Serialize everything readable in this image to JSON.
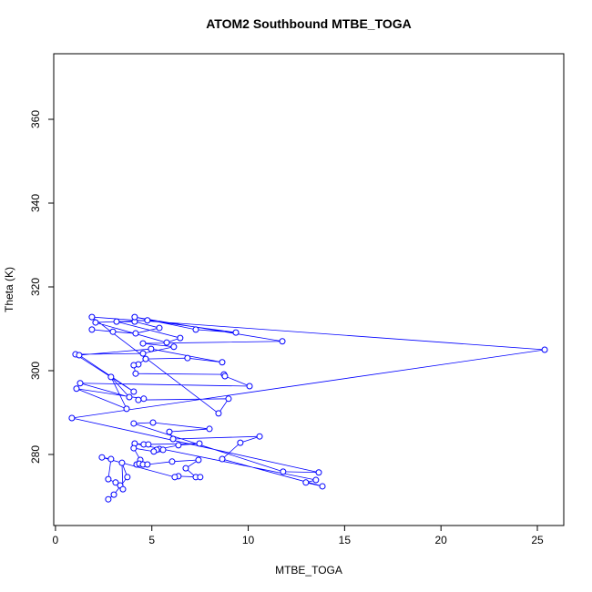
{
  "chart_data": {
    "type": "line",
    "title": "ATOM2 Southbound MTBE_TOGA",
    "xlabel": "MTBE_TOGA",
    "ylabel": "Theta (K)",
    "color": "#0000ff",
    "marker": true,
    "xlim": [
      -0.09,
      26.37
    ],
    "ylim": [
      263.04,
      375.65
    ],
    "xticks": [
      0,
      5,
      10,
      15,
      20,
      25
    ],
    "yticks": [
      280,
      300,
      320,
      340,
      360
    ],
    "series": [
      {
        "name": "MTBE_TOGA",
        "color": "#0000ff",
        "x": [
          1.89,
          2.98,
          4.16,
          5.39,
          4.11,
          3.17,
          6.47,
          5.77,
          2.08,
          4.77,
          9.36,
          7.28,
          4.11,
          11.77,
          4.54,
          6.14,
          4.54,
          1.04,
          4.06,
          1.23,
          4.96,
          8.65,
          6.85,
          4.68,
          4.3,
          4.06,
          4.16,
          8.74,
          8.79,
          10.07,
          1.28,
          3.83,
          2.88,
          3.69,
          1.09,
          4.58,
          4.3,
          8.98,
          8.46,
          1.89,
          25.38,
          0.85,
          13.66,
          11.81,
          4.06,
          5.06,
          7.99,
          5.91,
          6.1,
          10.59,
          9.59,
          8.65,
          13.85,
          12.99,
          13.51,
          4.11,
          4.58,
          4.82,
          7.47,
          6.38,
          5.39,
          5.25,
          5.58,
          5.1,
          4.06,
          4.4,
          4.21,
          4.35,
          4.54,
          4.77,
          6.05,
          7.42,
          6.76,
          7.28,
          7.51,
          6.38,
          6.19,
          2.41,
          2.88,
          2.74,
          3.12,
          3.36,
          3.5,
          3.45,
          3.73,
          3.03,
          2.74
        ],
        "values": [
          309.8,
          309.3,
          308.9,
          310.2,
          311.7,
          311.7,
          307.8,
          306.7,
          311.5,
          312.0,
          309.1,
          309.8,
          312.8,
          307.0,
          306.5,
          305.7,
          304.1,
          303.9,
          295.0,
          303.7,
          305.2,
          302.0,
          303.0,
          302.8,
          301.5,
          301.3,
          299.3,
          299.1,
          298.7,
          296.3,
          297.0,
          293.7,
          298.5,
          290.9,
          295.7,
          293.3,
          293.0,
          293.3,
          289.8,
          312.8,
          305.0,
          288.7,
          275.7,
          275.9,
          287.4,
          287.6,
          286.1,
          285.4,
          283.7,
          284.3,
          282.8,
          278.9,
          272.4,
          273.3,
          273.9,
          282.6,
          282.4,
          282.4,
          282.6,
          282.2,
          281.3,
          281.1,
          281.1,
          280.7,
          281.5,
          278.7,
          277.6,
          277.8,
          277.6,
          277.6,
          278.3,
          278.7,
          276.7,
          274.6,
          274.6,
          274.8,
          274.6,
          279.3,
          278.9,
          274.1,
          273.3,
          272.6,
          271.7,
          278.0,
          274.6,
          270.4,
          269.3
        ]
      }
    ]
  }
}
